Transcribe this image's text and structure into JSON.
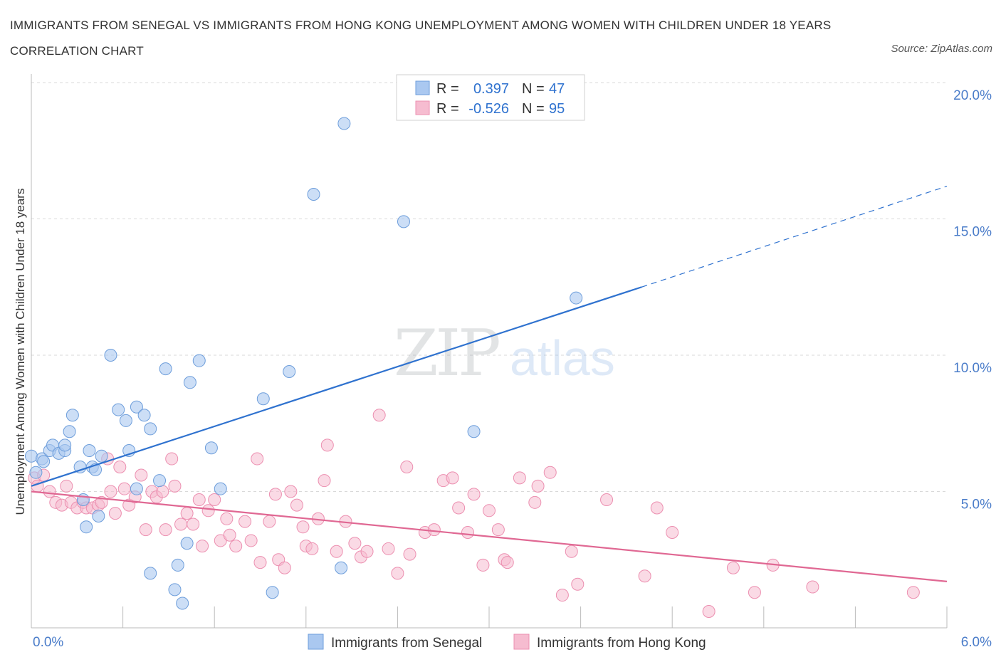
{
  "title": "IMMIGRANTS FROM SENEGAL VS IMMIGRANTS FROM HONG KONG UNEMPLOYMENT AMONG WOMEN WITH CHILDREN UNDER 18 YEARS CORRELATION CHART",
  "source": "Source: ZipAtlas.com",
  "watermark": {
    "zip": "ZIP",
    "atlas": "atlas"
  },
  "legend_stats": {
    "rows": [
      {
        "r_label": "R =",
        "r_value": "0.397",
        "n_label": "N =",
        "n_value": "47"
      },
      {
        "r_label": "R =",
        "r_value": "-0.526",
        "n_label": "N =",
        "n_value": "95"
      }
    ]
  },
  "colors": {
    "senegal_fill": "#aac8f0",
    "senegal_stroke": "#6e9edb",
    "senegal_line": "#2f72cf",
    "hongkong_fill": "#f6bcd0",
    "hongkong_stroke": "#ec8fb0",
    "hongkong_line": "#e06893",
    "tick_text": "#4a7cc9",
    "grid": "#d9d9d9"
  },
  "chart_data": {
    "type": "scatter",
    "title": "IMMIGRANTS FROM SENEGAL VS IMMIGRANTS FROM HONG KONG UNEMPLOYMENT AMONG WOMEN WITH CHILDREN UNDER 18 YEARS CORRELATION CHART",
    "xlabel": "",
    "ylabel": "Unemployment Among Women with Children Under 18 years",
    "xlim": [
      0,
      6
    ],
    "ylim": [
      0,
      20
    ],
    "x_tick_labels": [
      "0.0%",
      "6.0%"
    ],
    "y_ticks": [
      5,
      10,
      15,
      20
    ],
    "y_tick_labels": [
      "5.0%",
      "10.0%",
      "15.0%",
      "20.0%"
    ],
    "grid": true,
    "legend_position": "top-center",
    "series": [
      {
        "name": "Immigrants from Senegal",
        "r": 0.397,
        "n": 47,
        "trend": {
          "x0": 0.0,
          "y0": 5.2,
          "x1": 4.0,
          "y1": 12.5,
          "dashed_to_x": 6.0,
          "dashed_to_y": 16.2
        },
        "points": [
          [
            0.0,
            6.3
          ],
          [
            0.03,
            5.7
          ],
          [
            0.07,
            6.2
          ],
          [
            0.12,
            6.5
          ],
          [
            0.14,
            6.7
          ],
          [
            0.18,
            6.4
          ],
          [
            0.22,
            6.5
          ],
          [
            0.22,
            6.7
          ],
          [
            0.25,
            7.2
          ],
          [
            0.27,
            7.8
          ],
          [
            0.32,
            5.9
          ],
          [
            0.34,
            4.7
          ],
          [
            0.36,
            3.7
          ],
          [
            0.38,
            6.5
          ],
          [
            0.4,
            5.9
          ],
          [
            0.44,
            4.1
          ],
          [
            0.46,
            6.3
          ],
          [
            0.52,
            10.0
          ],
          [
            0.57,
            8.0
          ],
          [
            0.62,
            7.6
          ],
          [
            0.64,
            6.5
          ],
          [
            0.69,
            8.1
          ],
          [
            0.69,
            5.1
          ],
          [
            0.74,
            7.8
          ],
          [
            0.78,
            7.3
          ],
          [
            0.78,
            2.0
          ],
          [
            0.84,
            5.4
          ],
          [
            0.88,
            9.5
          ],
          [
            0.94,
            1.4
          ],
          [
            0.96,
            2.3
          ],
          [
            0.99,
            0.9
          ],
          [
            1.02,
            3.1
          ],
          [
            1.04,
            9.0
          ],
          [
            1.1,
            9.8
          ],
          [
            1.18,
            6.6
          ],
          [
            1.24,
            5.1
          ],
          [
            1.52,
            8.4
          ],
          [
            1.58,
            1.3
          ],
          [
            1.69,
            9.4
          ],
          [
            1.85,
            15.9
          ],
          [
            2.03,
            2.2
          ],
          [
            2.05,
            18.5
          ],
          [
            2.44,
            14.9
          ],
          [
            2.9,
            7.2
          ],
          [
            3.57,
            12.1
          ],
          [
            0.08,
            6.1
          ],
          [
            0.42,
            5.8
          ]
        ]
      },
      {
        "name": "Immigrants from Hong Kong",
        "r": -0.526,
        "n": 95,
        "trend": {
          "x0": 0.0,
          "y0": 5.0,
          "x1": 6.0,
          "y1": 1.7
        },
        "points": [
          [
            0.02,
            5.5
          ],
          [
            0.04,
            5.2
          ],
          [
            0.08,
            5.6
          ],
          [
            0.12,
            5.0
          ],
          [
            0.16,
            4.6
          ],
          [
            0.2,
            4.5
          ],
          [
            0.23,
            5.2
          ],
          [
            0.26,
            4.6
          ],
          [
            0.3,
            4.4
          ],
          [
            0.34,
            4.6
          ],
          [
            0.36,
            4.4
          ],
          [
            0.4,
            4.4
          ],
          [
            0.44,
            4.5
          ],
          [
            0.46,
            4.6
          ],
          [
            0.5,
            6.2
          ],
          [
            0.52,
            5.0
          ],
          [
            0.55,
            4.2
          ],
          [
            0.58,
            5.9
          ],
          [
            0.61,
            5.1
          ],
          [
            0.64,
            4.5
          ],
          [
            0.68,
            4.8
          ],
          [
            0.72,
            5.6
          ],
          [
            0.75,
            3.6
          ],
          [
            0.79,
            5.0
          ],
          [
            0.82,
            4.8
          ],
          [
            0.86,
            5.0
          ],
          [
            0.88,
            3.6
          ],
          [
            0.92,
            6.2
          ],
          [
            0.94,
            5.2
          ],
          [
            0.98,
            3.8
          ],
          [
            1.02,
            4.2
          ],
          [
            1.06,
            3.8
          ],
          [
            1.1,
            4.7
          ],
          [
            1.12,
            3.0
          ],
          [
            1.16,
            4.3
          ],
          [
            1.2,
            4.7
          ],
          [
            1.24,
            3.2
          ],
          [
            1.28,
            4.0
          ],
          [
            1.3,
            3.4
          ],
          [
            1.34,
            3.0
          ],
          [
            1.4,
            3.9
          ],
          [
            1.44,
            3.2
          ],
          [
            1.48,
            6.2
          ],
          [
            1.5,
            2.4
          ],
          [
            1.56,
            3.9
          ],
          [
            1.6,
            4.9
          ],
          [
            1.62,
            2.5
          ],
          [
            1.66,
            2.2
          ],
          [
            1.7,
            5.0
          ],
          [
            1.74,
            4.5
          ],
          [
            1.78,
            3.7
          ],
          [
            1.8,
            3.0
          ],
          [
            1.84,
            2.9
          ],
          [
            1.88,
            4.0
          ],
          [
            1.92,
            5.4
          ],
          [
            1.94,
            6.7
          ],
          [
            2.0,
            2.8
          ],
          [
            2.06,
            3.9
          ],
          [
            2.12,
            3.1
          ],
          [
            2.16,
            2.6
          ],
          [
            2.2,
            2.8
          ],
          [
            2.28,
            7.8
          ],
          [
            2.34,
            2.9
          ],
          [
            2.4,
            2.0
          ],
          [
            2.46,
            5.9
          ],
          [
            2.48,
            2.7
          ],
          [
            2.58,
            3.5
          ],
          [
            2.64,
            3.6
          ],
          [
            2.7,
            5.4
          ],
          [
            2.76,
            5.5
          ],
          [
            2.8,
            4.4
          ],
          [
            2.86,
            3.5
          ],
          [
            2.9,
            4.9
          ],
          [
            2.96,
            2.3
          ],
          [
            3.0,
            4.3
          ],
          [
            3.06,
            3.6
          ],
          [
            3.1,
            2.5
          ],
          [
            3.12,
            2.4
          ],
          [
            3.2,
            5.5
          ],
          [
            3.3,
            4.6
          ],
          [
            3.32,
            5.2
          ],
          [
            3.4,
            5.7
          ],
          [
            3.48,
            1.2
          ],
          [
            3.54,
            2.8
          ],
          [
            3.58,
            1.6
          ],
          [
            3.77,
            4.7
          ],
          [
            4.02,
            1.9
          ],
          [
            4.1,
            4.4
          ],
          [
            4.2,
            3.5
          ],
          [
            4.44,
            0.6
          ],
          [
            4.6,
            2.2
          ],
          [
            4.74,
            1.3
          ],
          [
            4.86,
            2.3
          ],
          [
            5.12,
            1.5
          ],
          [
            5.78,
            1.3
          ]
        ]
      }
    ]
  },
  "bottom_legend": {
    "items": [
      {
        "label": "Immigrants from Senegal"
      },
      {
        "label": "Immigrants from Hong Kong"
      }
    ]
  }
}
